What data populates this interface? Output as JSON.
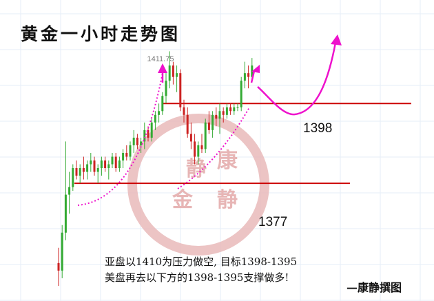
{
  "header": {
    "title": "黄金一小时走势图"
  },
  "watermark": {
    "top": "康",
    "left": "静",
    "bottom_left": "金",
    "bottom_right": "静"
  },
  "annotation": {
    "line1": "亚盘以1410为压力做空, 目标1398-1395",
    "line2": "美盘再去以下方的1398-1395支撑做多!",
    "author": "—康静撰图"
  },
  "colors": {
    "up": "#33aa33",
    "down": "#cc2222",
    "level_line": "#cc0000",
    "projection": "#ee11cc",
    "watermark": "#e7b5b5",
    "grid": "#e6eef7"
  },
  "chart_data": {
    "type": "candlestick",
    "title": "黄金一小时走势图",
    "price_label": "1411.75",
    "levels": [
      {
        "label": "1398",
        "value": 1398
      },
      {
        "label": "1377",
        "value": 1377
      }
    ],
    "ylim": [
      1346,
      1418
    ],
    "candles": [
      [
        1356,
        1360,
        1350,
        1354
      ],
      [
        1354,
        1366,
        1352,
        1364
      ],
      [
        1364,
        1388,
        1362,
        1374
      ],
      [
        1374,
        1380,
        1369,
        1376
      ],
      [
        1376,
        1382,
        1375,
        1381
      ],
      [
        1381,
        1383,
        1378,
        1379
      ],
      [
        1379,
        1382,
        1377,
        1381
      ],
      [
        1381,
        1384,
        1378,
        1380
      ],
      [
        1380,
        1383,
        1378,
        1382
      ],
      [
        1382,
        1385,
        1380,
        1383
      ],
      [
        1383,
        1384,
        1379,
        1380
      ],
      [
        1380,
        1382,
        1377,
        1381
      ],
      [
        1381,
        1384,
        1379,
        1383
      ],
      [
        1383,
        1384,
        1380,
        1381
      ],
      [
        1381,
        1383,
        1378,
        1382
      ],
      [
        1382,
        1385,
        1381,
        1384
      ],
      [
        1384,
        1385,
        1380,
        1381
      ],
      [
        1381,
        1384,
        1380,
        1383
      ],
      [
        1383,
        1386,
        1381,
        1385
      ],
      [
        1385,
        1387,
        1383,
        1384
      ],
      [
        1384,
        1388,
        1383,
        1387
      ],
      [
        1387,
        1391,
        1385,
        1389
      ],
      [
        1389,
        1390,
        1386,
        1387
      ],
      [
        1387,
        1389,
        1385,
        1388
      ],
      [
        1388,
        1393,
        1386,
        1391
      ],
      [
        1391,
        1392,
        1388,
        1389
      ],
      [
        1389,
        1394,
        1388,
        1393
      ],
      [
        1393,
        1396,
        1391,
        1395
      ],
      [
        1395,
        1398,
        1393,
        1396
      ],
      [
        1396,
        1401,
        1395,
        1400
      ],
      [
        1400,
        1406,
        1398,
        1404
      ],
      [
        1404,
        1411.75,
        1402,
        1408
      ],
      [
        1408,
        1409,
        1403,
        1405
      ],
      [
        1405,
        1408,
        1401,
        1406
      ],
      [
        1406,
        1407,
        1396,
        1397
      ],
      [
        1397,
        1399,
        1393,
        1395
      ],
      [
        1395,
        1397,
        1389,
        1390
      ],
      [
        1390,
        1393,
        1386,
        1388
      ],
      [
        1388,
        1390,
        1382,
        1384
      ],
      [
        1384,
        1388,
        1382,
        1387
      ],
      [
        1387,
        1390,
        1385,
        1386
      ],
      [
        1386,
        1394,
        1385,
        1393
      ],
      [
        1393,
        1396,
        1390,
        1391
      ],
      [
        1391,
        1396,
        1389,
        1395
      ],
      [
        1395,
        1397,
        1392,
        1394
      ],
      [
        1394,
        1398,
        1390,
        1396
      ],
      [
        1396,
        1397,
        1393,
        1395
      ],
      [
        1395,
        1398,
        1394,
        1397
      ],
      [
        1397,
        1398,
        1395,
        1396
      ],
      [
        1396,
        1398,
        1395,
        1397
      ],
      [
        1397,
        1398,
        1396,
        1397
      ],
      [
        1397,
        1405,
        1396,
        1404
      ],
      [
        1404,
        1409,
        1402,
        1406
      ],
      [
        1406,
        1408,
        1402,
        1405
      ],
      [
        1405,
        1410,
        1404,
        1408
      ]
    ],
    "grid": true
  }
}
